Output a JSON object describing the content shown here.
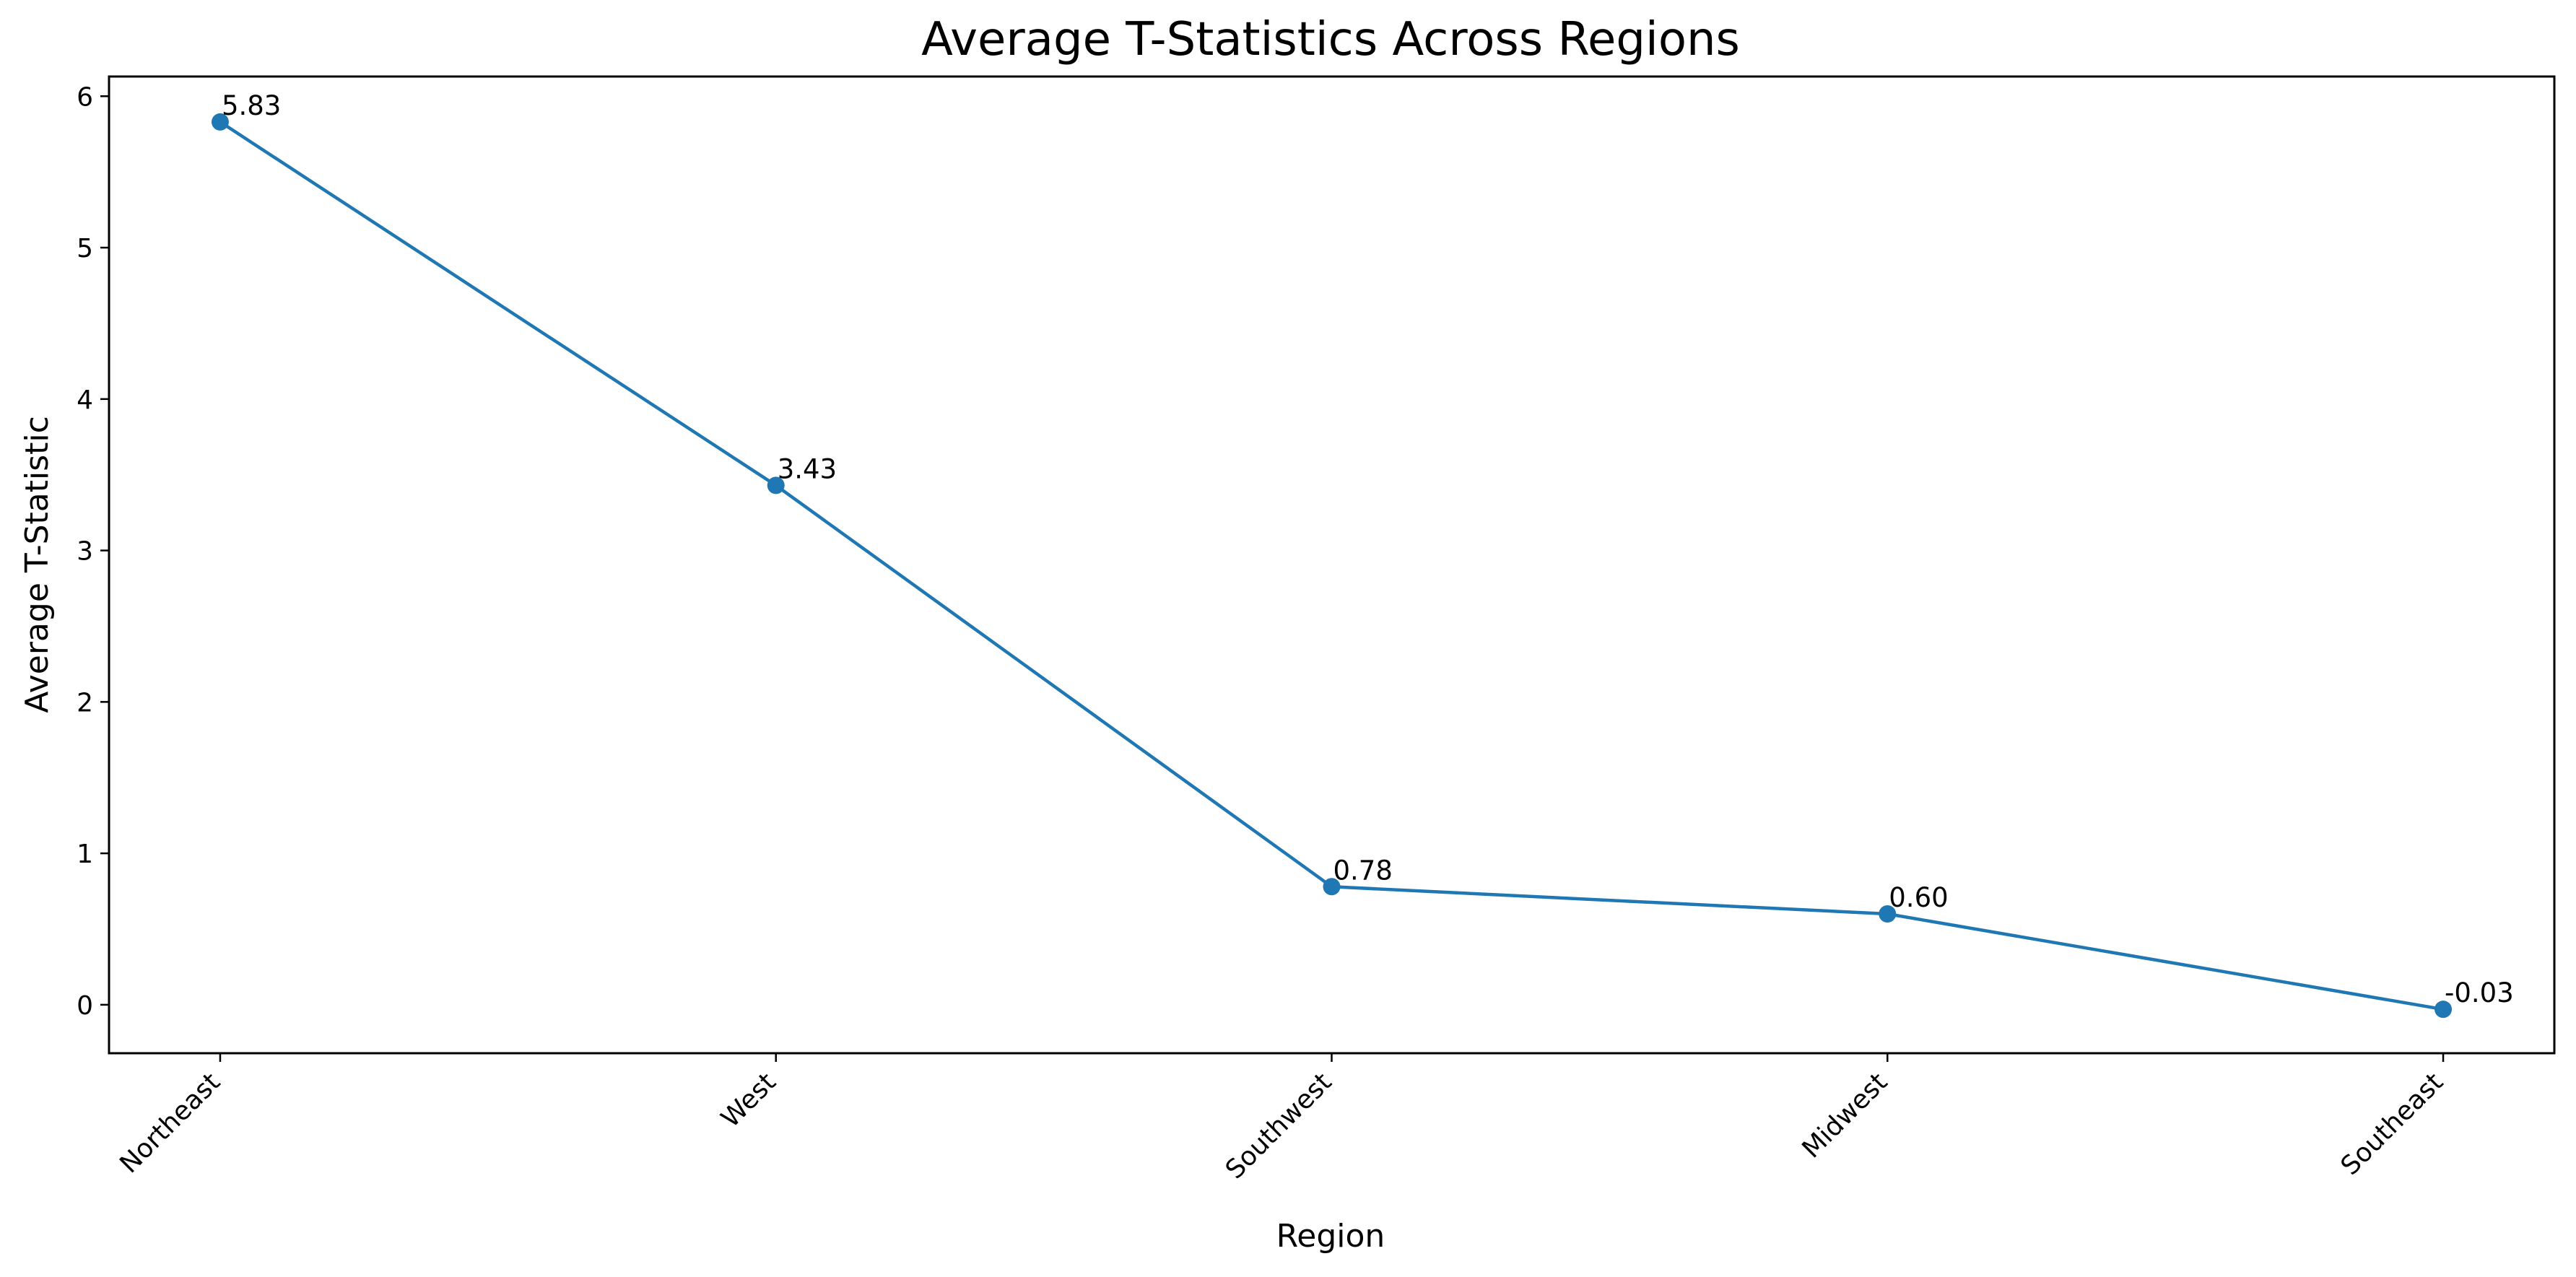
{
  "chart_data": {
    "type": "line",
    "title": "Average T-Statistics Across Regions",
    "xlabel": "Region",
    "ylabel": "Average T-Statistic",
    "categories": [
      "Northeast",
      "West",
      "Southwest",
      "Midwest",
      "Southeast"
    ],
    "series": [
      {
        "values": [
          5.83,
          3.43,
          0.78,
          0.6,
          -0.03
        ],
        "labels": [
          "5.83",
          "3.43",
          "0.78",
          "0.60",
          "-0.03"
        ],
        "color": "#1f77b4",
        "marker": "circle"
      }
    ],
    "yticks": [
      0,
      1,
      2,
      3,
      4,
      5,
      6
    ],
    "ylim": [
      -0.32,
      6.13
    ],
    "grid": false,
    "legend": "none",
    "xtick_rotation": "45-degrees"
  }
}
